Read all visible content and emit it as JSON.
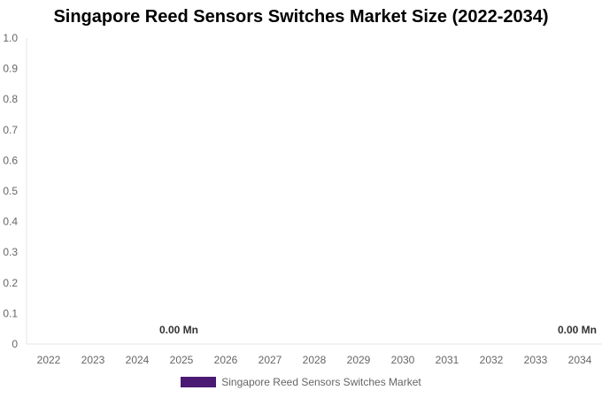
{
  "chart_data": {
    "type": "bar",
    "title": "Singapore Reed Sensors Switches Market Size (2022-2034)",
    "xlabel": "",
    "ylabel": "",
    "categories": [
      "2022",
      "2023",
      "2024",
      "2025",
      "2026",
      "2027",
      "2028",
      "2029",
      "2030",
      "2031",
      "2032",
      "2033",
      "2034"
    ],
    "series": [
      {
        "name": "Singapore Reed Sensors Switches Market",
        "values": [
          0,
          0,
          0,
          0,
          0,
          0,
          0,
          0,
          0,
          0,
          0,
          0,
          0
        ],
        "color": "#4b1a74"
      }
    ],
    "ylim": [
      0,
      1.0
    ],
    "yticks": [
      "0",
      "0.1",
      "0.2",
      "0.3",
      "0.4",
      "0.5",
      "0.6",
      "0.7",
      "0.8",
      "0.9",
      "1.0"
    ],
    "data_labels": [
      {
        "category": "2025",
        "text": "0.00 Mn"
      },
      {
        "category": "2034",
        "text": "0.00 Mn"
      }
    ],
    "grid": false,
    "legend_position": "bottom"
  }
}
